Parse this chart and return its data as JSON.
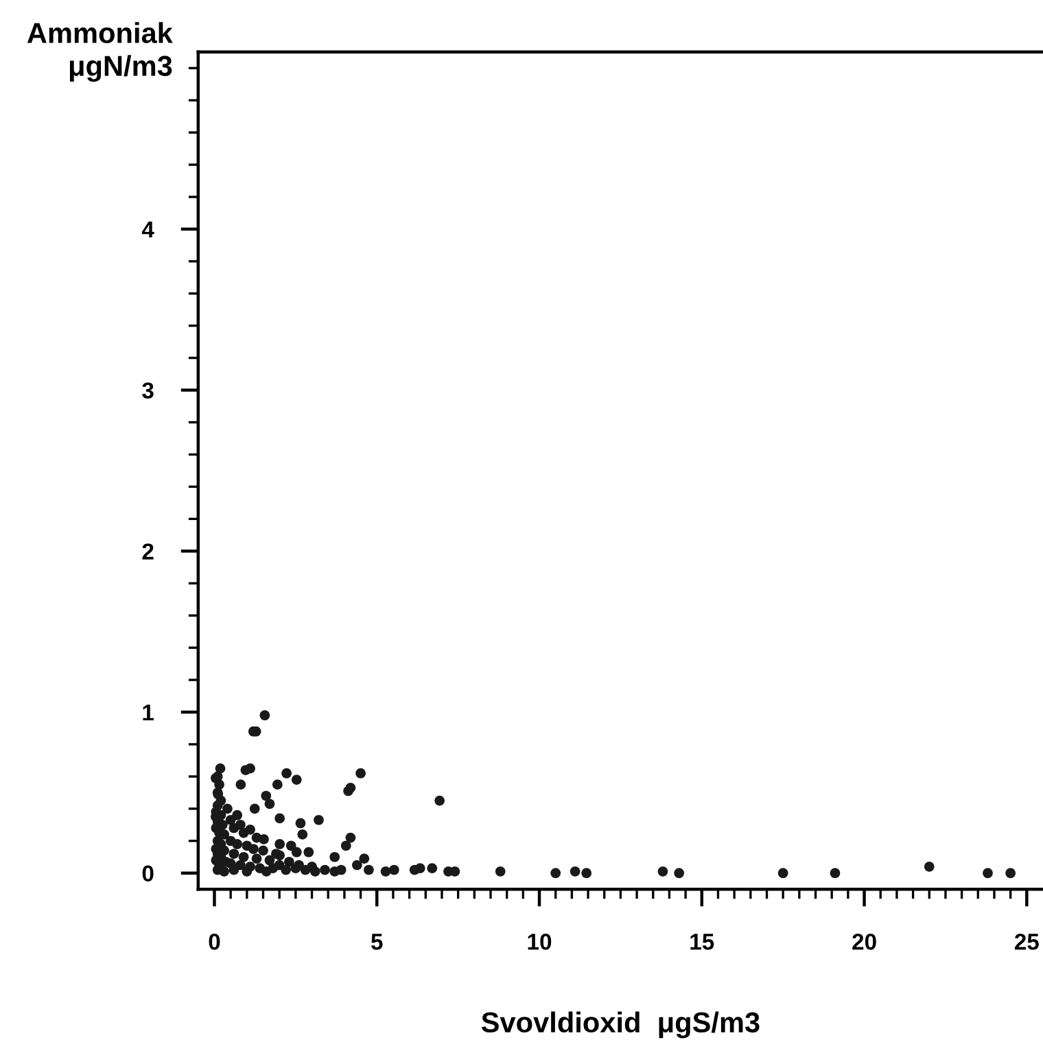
{
  "chart_data": {
    "type": "scatter",
    "xlabel": "Svovldioxid  μgS/m3",
    "ylabel": "Ammoniak\nμgN/m3",
    "marker": "circle",
    "color": "#1a1a1a",
    "xlim": [
      -0.5,
      25.5
    ],
    "ylim": [
      -0.1,
      5.1
    ],
    "xticks": [
      0,
      {
        "value": 0.5,
        "label": null
      },
      {
        "value": 1,
        "label": null
      },
      {
        "value": 1.5,
        "label": null
      },
      {
        "value": 2,
        "label": null
      },
      {
        "value": 2.5,
        "label": null
      },
      {
        "value": 3,
        "label": null
      },
      {
        "value": 3.5,
        "label": null
      },
      {
        "value": 4,
        "label": null
      },
      {
        "value": 4.5,
        "label": null
      },
      5,
      {
        "value": 5.5,
        "label": null
      },
      {
        "value": 6,
        "label": null
      },
      {
        "value": 6.5,
        "label": null
      },
      {
        "value": 7,
        "label": null
      },
      {
        "value": 7.5,
        "label": null
      },
      {
        "value": 8,
        "label": null
      },
      {
        "value": 8.5,
        "label": null
      },
      {
        "value": 9,
        "label": null
      },
      {
        "value": 9.5,
        "label": null
      },
      10,
      {
        "value": 10.5,
        "label": null
      },
      {
        "value": 11,
        "label": null
      },
      {
        "value": 11.5,
        "label": null
      },
      {
        "value": 12,
        "label": null
      },
      {
        "value": 12.5,
        "label": null
      },
      {
        "value": 13,
        "label": null
      },
      {
        "value": 13.5,
        "label": null
      },
      {
        "value": 14,
        "label": null
      },
      {
        "value": 14.5,
        "label": null
      },
      15,
      {
        "value": 15.5,
        "label": null
      },
      {
        "value": 16,
        "label": null
      },
      {
        "value": 16.5,
        "label": null
      },
      {
        "value": 17,
        "label": null
      },
      {
        "value": 17.5,
        "label": null
      },
      {
        "value": 18,
        "label": null
      },
      {
        "value": 18.5,
        "label": null
      },
      {
        "value": 19,
        "label": null
      },
      {
        "value": 19.5,
        "label": null
      },
      20,
      {
        "value": 20.5,
        "label": null
      },
      {
        "value": 21,
        "label": null
      },
      {
        "value": 21.5,
        "label": null
      },
      {
        "value": 22,
        "label": null
      },
      {
        "value": 22.5,
        "label": null
      },
      {
        "value": 23,
        "label": null
      },
      {
        "value": 23.5,
        "label": null
      },
      {
        "value": 24,
        "label": null
      },
      {
        "value": 24.5,
        "label": null
      },
      25
    ],
    "yticks": [
      0,
      {
        "value": 0.2,
        "label": null
      },
      {
        "value": 0.4,
        "label": null
      },
      {
        "value": 0.6,
        "label": null
      },
      {
        "value": 0.8,
        "label": null
      },
      1,
      {
        "value": 1.2,
        "label": null
      },
      {
        "value": 1.4,
        "label": null
      },
      {
        "value": 1.6,
        "label": null
      },
      {
        "value": 1.8,
        "label": null
      },
      2,
      {
        "value": 2.2,
        "label": null
      },
      {
        "value": 2.4,
        "label": null
      },
      {
        "value": 2.6,
        "label": null
      },
      {
        "value": 2.8,
        "label": null
      },
      3,
      {
        "value": 3.2,
        "label": null
      },
      {
        "value": 3.4,
        "label": null
      },
      {
        "value": 3.6,
        "label": null
      },
      {
        "value": 3.8,
        "label": null
      },
      4,
      {
        "value": 4.2,
        "label": null
      },
      {
        "value": 4.4,
        "label": null
      },
      {
        "value": 4.6,
        "label": null
      },
      {
        "value": 4.8,
        "label": null
      },
      {
        "value": 5,
        "label": null
      }
    ],
    "grid": false,
    "x": [
      1.55,
      1.2,
      1.28,
      0.18,
      0.96,
      1.1,
      2.22,
      2.53,
      4.5,
      4.19,
      4.12,
      6.93,
      0.81,
      1.94,
      1.59,
      1.7,
      1.24,
      2.01,
      3.21,
      2.65,
      2.71,
      4.19,
      4.05,
      2.01,
      2.36,
      2.53,
      2.9,
      3.7,
      4.61,
      2.01,
      1.52,
      0.04,
      0.11,
      0.04,
      0.1,
      0.15,
      0.1,
      0.2,
      0.1,
      0.05,
      0.2,
      0.1,
      0.25,
      0.05,
      0.15,
      0.3,
      0.1,
      0.2,
      0.05,
      0.3,
      0.1,
      0.2,
      0.05,
      0.35,
      0.15,
      0.1,
      0.3,
      0.5,
      0.6,
      0.8,
      0.9,
      1.1,
      1.3,
      0.5,
      0.7,
      1.0,
      1.2,
      1.5,
      0.6,
      0.9,
      1.3,
      1.7,
      0.5,
      0.8,
      1.1,
      1.4,
      1.8,
      0.6,
      1.0,
      1.6,
      2.0,
      2.2,
      2.5,
      2.8,
      3.1,
      3.4,
      3.7,
      3.9,
      2.3,
      2.6,
      3.0,
      1.9,
      0.4,
      0.7,
      4.39,
      4.75,
      5.27,
      5.53,
      6.16,
      6.33,
      6.7,
      7.2,
      7.4,
      8.8,
      10.5,
      11.1,
      11.45,
      13.8,
      14.3,
      17.5,
      19.1,
      22.0,
      23.8,
      24.5
    ],
    "values": [
      0.98,
      0.88,
      0.88,
      0.65,
      0.64,
      0.65,
      0.62,
      0.58,
      0.62,
      0.53,
      0.51,
      0.45,
      0.55,
      0.55,
      0.48,
      0.43,
      0.4,
      0.34,
      0.33,
      0.31,
      0.24,
      0.22,
      0.17,
      0.18,
      0.17,
      0.13,
      0.13,
      0.1,
      0.09,
      0.11,
      0.21,
      0.59,
      0.49,
      0.35,
      0.6,
      0.55,
      0.5,
      0.45,
      0.42,
      0.38,
      0.36,
      0.32,
      0.3,
      0.28,
      0.25,
      0.24,
      0.2,
      0.18,
      0.15,
      0.14,
      0.12,
      0.1,
      0.08,
      0.07,
      0.05,
      0.02,
      0.01,
      0.33,
      0.28,
      0.3,
      0.25,
      0.27,
      0.22,
      0.2,
      0.18,
      0.17,
      0.15,
      0.14,
      0.12,
      0.1,
      0.09,
      0.08,
      0.06,
      0.05,
      0.04,
      0.03,
      0.03,
      0.02,
      0.01,
      0.01,
      0.05,
      0.02,
      0.03,
      0.02,
      0.01,
      0.02,
      0.01,
      0.02,
      0.07,
      0.05,
      0.04,
      0.12,
      0.4,
      0.36,
      0.05,
      0.02,
      0.01,
      0.02,
      0.02,
      0.03,
      0.03,
      0.01,
      0.01,
      0.01,
      0.0,
      0.01,
      0.0,
      0.01,
      0.0,
      0.0,
      0.0,
      0.04,
      0.0,
      0.0
    ]
  }
}
